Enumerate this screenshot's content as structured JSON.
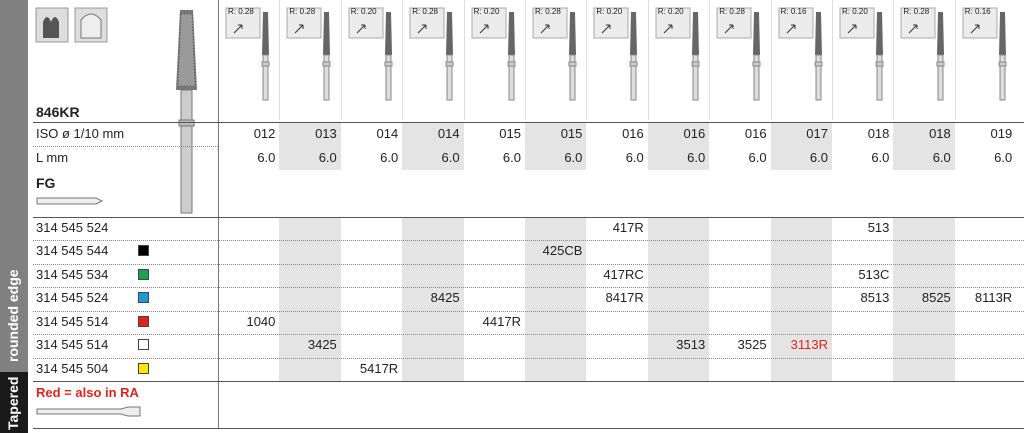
{
  "sidebar": {
    "shape": "Tapered",
    "edge": "rounded edge"
  },
  "product": {
    "code": "846KR",
    "mount": "FG",
    "note": "Red = also in RA",
    "note_color": "#d9261c"
  },
  "columns": {
    "radius": [
      "R: 0.28",
      "R: 0.28",
      "R: 0.20",
      "R: 0.28",
      "R: 0.20",
      "R: 0.28",
      "R: 0.20",
      "R: 0.20",
      "R: 0.28",
      "R: 0.16",
      "R: 0.20",
      "R: 0.28",
      "R: 0.16"
    ],
    "iso_label": "ISO ø 1/10 mm",
    "iso": [
      "012",
      "013",
      "014",
      "014",
      "015",
      "015",
      "016",
      "016",
      "016",
      "017",
      "018",
      "018",
      "019"
    ],
    "length_label": "L mm",
    "length": [
      "6.0",
      "6.0",
      "6.0",
      "6.0",
      "6.0",
      "6.0",
      "6.0",
      "6.0",
      "6.0",
      "6.0",
      "6.0",
      "6.0",
      "6.0"
    ]
  },
  "rows": [
    {
      "ref": "314 545 524",
      "marker": null,
      "cells": [
        null,
        null,
        null,
        null,
        null,
        null,
        "417R",
        null,
        null,
        null,
        "513",
        null,
        null
      ]
    },
    {
      "ref": "314 545 544",
      "marker": "#000000",
      "cells": [
        null,
        null,
        null,
        null,
        null,
        "425CB",
        null,
        null,
        null,
        null,
        null,
        null,
        null
      ]
    },
    {
      "ref": "314 545 534",
      "marker": "#1aa34a",
      "cells": [
        null,
        null,
        null,
        null,
        null,
        null,
        "417RC",
        null,
        null,
        null,
        "513C",
        null,
        null
      ]
    },
    {
      "ref": "314 545 524",
      "marker": "#1e9ad6",
      "cells": [
        null,
        null,
        null,
        "8425",
        null,
        null,
        "8417R",
        null,
        null,
        null,
        "8513",
        "8525",
        "8113R"
      ]
    },
    {
      "ref": "314 545 514",
      "marker": "#e2231a",
      "cells": [
        "1040",
        null,
        null,
        null,
        "4417R",
        null,
        null,
        null,
        null,
        null,
        null,
        null,
        null
      ]
    },
    {
      "ref": "314 545 514",
      "marker": "#ffffff",
      "cells": [
        null,
        "3425",
        null,
        null,
        null,
        null,
        null,
        "3513",
        "3525",
        {
          "text": "3113R",
          "color": "#d9261c"
        },
        null,
        null,
        null
      ]
    },
    {
      "ref": "314 545 504",
      "marker": "#ffe600",
      "cells": [
        null,
        null,
        "5417R",
        null,
        null,
        null,
        null,
        null,
        null,
        null,
        null,
        null,
        null
      ]
    }
  ]
}
